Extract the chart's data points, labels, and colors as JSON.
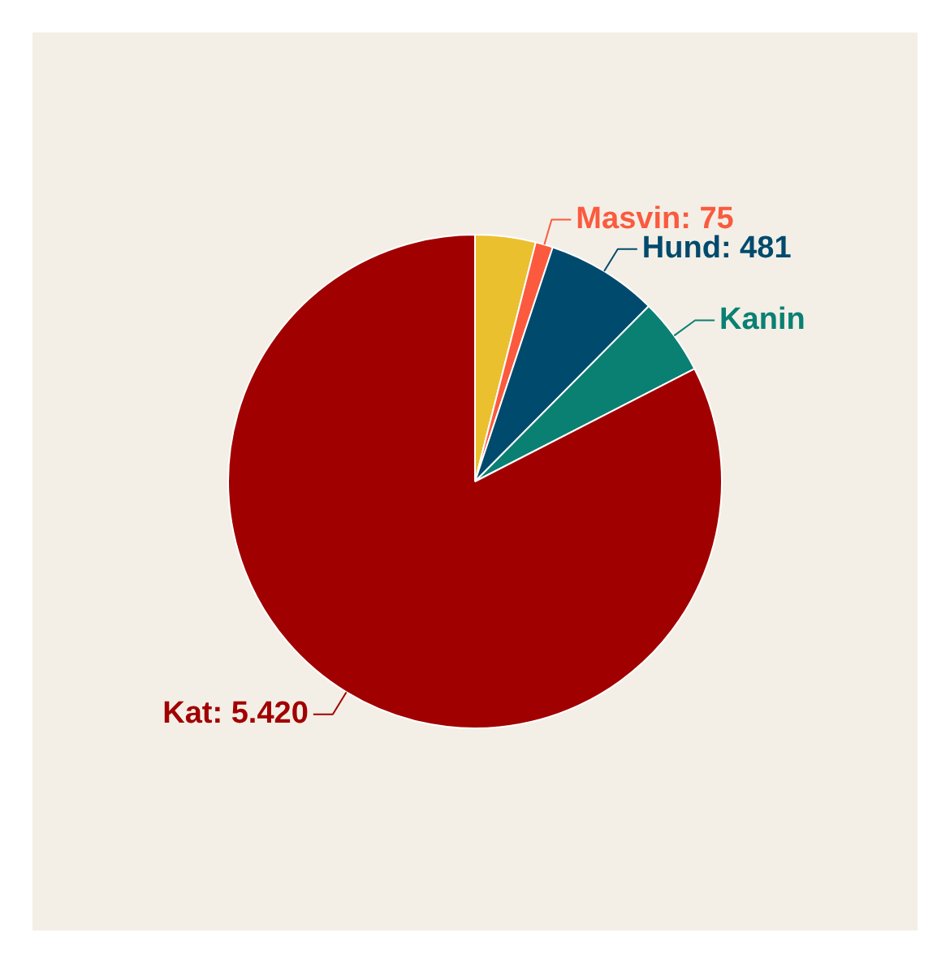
{
  "chart_data": {
    "type": "pie",
    "categories": [
      null,
      "Masvin",
      "Hund",
      "Kanin",
      "Kat"
    ],
    "values": [
      260,
      75,
      481,
      330,
      5420
    ],
    "value_labels": [
      null,
      "75",
      "481",
      null,
      "5.420"
    ],
    "colors": [
      "#ebc02e",
      "#fb5a3f",
      "#004a6e",
      "#0a8073",
      "#a10000"
    ],
    "legend": false
  }
}
